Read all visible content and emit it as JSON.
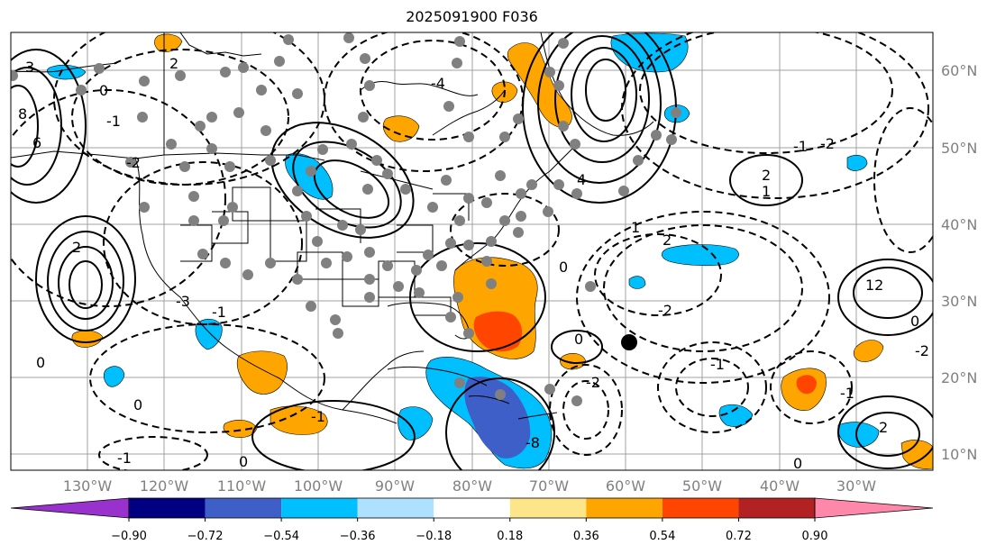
{
  "title": "2025091900 F036",
  "map": {
    "lon_labels": [
      "130°W",
      "120°W",
      "110°W",
      "100°W",
      "90°W",
      "80°W",
      "70°W",
      "60°W",
      "50°W",
      "40°W",
      "30°W"
    ],
    "lat_labels": [
      "60°N",
      "50°N",
      "40°N",
      "30°N",
      "20°N",
      "10°N"
    ],
    "contour_labels": [
      "3",
      "2",
      "0",
      "8",
      "6",
      "-1",
      "-2",
      "-4",
      "4",
      "1",
      "-3",
      "12",
      "2",
      "-2",
      "0",
      "-1",
      "0",
      "-1",
      "0",
      "-2",
      "-1",
      "0",
      "-1",
      "2",
      "-2",
      "1",
      "-2",
      "2",
      "-8",
      "0",
      "-1",
      "0",
      "2",
      "-1",
      "0"
    ]
  },
  "colors": {
    "ocean": "#ffffff",
    "grid": "#a0a0a0",
    "neg_strong": "#3f5fc8",
    "neg_mid": "#00bfff",
    "neg_weak": "#aee0ff",
    "pos_weak": "#fde68a",
    "pos_mid": "#ffa500",
    "pos_strong": "#ff4500",
    "station": "#808080"
  },
  "colorbar": {
    "ticks": [
      "−0.90",
      "−0.72",
      "−0.54",
      "−0.36",
      "−0.18",
      "0.18",
      "0.36",
      "0.54",
      "0.72",
      "0.90"
    ],
    "bins": [
      "#9932cc",
      "#000080",
      "#3f5fc8",
      "#00bfff",
      "#aee0ff",
      "#ffffff",
      "#fde68a",
      "#ffa500",
      "#ff4500",
      "#b22222",
      "#ff88aa"
    ]
  }
}
